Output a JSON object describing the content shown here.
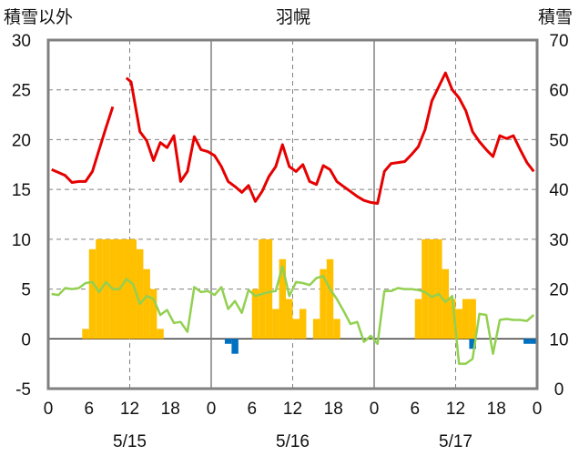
{
  "chart_data": {
    "type": "line",
    "title": "羽幌",
    "left_axis_title": "積雪以外",
    "right_axis_title": "積雪",
    "y_left": {
      "min": -5,
      "max": 30,
      "ticks": [
        "30",
        "25",
        "20",
        "15",
        "10",
        "5",
        "0",
        "-5"
      ]
    },
    "y_right": {
      "min": 0,
      "max": 70,
      "ticks": [
        "70",
        "60",
        "50",
        "40",
        "30",
        "20",
        "10",
        "0"
      ]
    },
    "x_hour_ticks": [
      "0",
      "6",
      "12",
      "18",
      "0",
      "6",
      "12",
      "18",
      "0",
      "6",
      "12",
      "18",
      "0"
    ],
    "day_labels": [
      "5/15",
      "5/16",
      "5/17"
    ],
    "day_hours": 24,
    "days": 3,
    "grid": true,
    "colors": {
      "red": "#e60000",
      "green": "#92d050",
      "orange": "#ffc000",
      "blue": "#0070c0",
      "frame": "#808080",
      "grid": "#808080"
    },
    "series": [
      {
        "key": "red",
        "axis": "left",
        "color": "#e60000",
        "points": [
          [
            0,
            17.0
          ],
          [
            1,
            16.7
          ],
          [
            2,
            16.4
          ],
          [
            3,
            15.7
          ],
          [
            4,
            15.8
          ],
          [
            5,
            15.8
          ],
          [
            6,
            16.8
          ],
          [
            7,
            19.0
          ],
          [
            8,
            21.2
          ],
          [
            9,
            23.3
          ],
          [
            11,
            26.2
          ],
          [
            11.7,
            25.8
          ],
          [
            13,
            20.8
          ],
          [
            14,
            19.9
          ],
          [
            15,
            17.9
          ],
          [
            16,
            19.7
          ],
          [
            17,
            19.2
          ],
          [
            18,
            20.4
          ],
          [
            19,
            15.8
          ],
          [
            20,
            16.8
          ],
          [
            21,
            20.3
          ],
          [
            22,
            19.0
          ],
          [
            23,
            18.8
          ],
          [
            24,
            18.4
          ],
          [
            25,
            17.3
          ],
          [
            26,
            15.8
          ],
          [
            27,
            15.3
          ],
          [
            28,
            14.7
          ],
          [
            29,
            15.4
          ],
          [
            30,
            13.8
          ],
          [
            31,
            14.8
          ],
          [
            32,
            16.3
          ],
          [
            33,
            17.3
          ],
          [
            34,
            19.5
          ],
          [
            35,
            17.3
          ],
          [
            36,
            16.8
          ],
          [
            37,
            17.5
          ],
          [
            38,
            15.8
          ],
          [
            39,
            15.5
          ],
          [
            40,
            17.4
          ],
          [
            41,
            17.0
          ],
          [
            42,
            15.8
          ],
          [
            43,
            15.3
          ],
          [
            44,
            14.8
          ],
          [
            45,
            14.3
          ],
          [
            46,
            13.9
          ],
          [
            47,
            13.7
          ],
          [
            48,
            13.6
          ],
          [
            49,
            16.8
          ],
          [
            50,
            17.6
          ],
          [
            51,
            17.7
          ],
          [
            52,
            17.8
          ],
          [
            53,
            18.5
          ],
          [
            54,
            19.3
          ],
          [
            55,
            21.0
          ],
          [
            56,
            23.9
          ],
          [
            57,
            25.3
          ],
          [
            58,
            26.7
          ],
          [
            59,
            25.0
          ],
          [
            60,
            24.2
          ],
          [
            61,
            22.9
          ],
          [
            62,
            20.8
          ],
          [
            63,
            19.8
          ],
          [
            64,
            19.0
          ],
          [
            65,
            18.3
          ],
          [
            66,
            20.4
          ],
          [
            67,
            20.1
          ],
          [
            68,
            20.4
          ],
          [
            69,
            19.0
          ],
          [
            70,
            17.7
          ],
          [
            71,
            16.8
          ]
        ]
      },
      {
        "key": "green",
        "axis": "left",
        "color": "#92d050",
        "points": [
          [
            0,
            4.5
          ],
          [
            1,
            4.4
          ],
          [
            2,
            5.1
          ],
          [
            3,
            5.0
          ],
          [
            4,
            5.1
          ],
          [
            5,
            5.6
          ],
          [
            6,
            5.7
          ],
          [
            7,
            4.7
          ],
          [
            8,
            5.7
          ],
          [
            9,
            5.0
          ],
          [
            10,
            5.0
          ],
          [
            11,
            6.0
          ],
          [
            12,
            5.5
          ],
          [
            13,
            3.5
          ],
          [
            14,
            4.3
          ],
          [
            15,
            4.0
          ],
          [
            16,
            2.4
          ],
          [
            17,
            2.9
          ],
          [
            18,
            1.6
          ],
          [
            19,
            1.7
          ],
          [
            20,
            0.7
          ],
          [
            21,
            5.2
          ],
          [
            22,
            4.7
          ],
          [
            23,
            4.8
          ],
          [
            24,
            4.4
          ],
          [
            25,
            5.2
          ],
          [
            26,
            3.0
          ],
          [
            27,
            3.8
          ],
          [
            28,
            2.6
          ],
          [
            29,
            4.9
          ],
          [
            30,
            4.3
          ],
          [
            31,
            4.5
          ],
          [
            32,
            4.7
          ],
          [
            33,
            4.8
          ],
          [
            34,
            7.3
          ],
          [
            35,
            4.3
          ],
          [
            36,
            5.7
          ],
          [
            37,
            5.6
          ],
          [
            38,
            5.4
          ],
          [
            39,
            6.1
          ],
          [
            40,
            6.3
          ],
          [
            41,
            5.0
          ],
          [
            42,
            4.0
          ],
          [
            43,
            2.8
          ],
          [
            44,
            1.5
          ],
          [
            45,
            1.7
          ],
          [
            46,
            -0.3
          ],
          [
            47,
            0.3
          ],
          [
            48,
            -0.5
          ],
          [
            49,
            4.8
          ],
          [
            50,
            4.8
          ],
          [
            51,
            5.1
          ],
          [
            52,
            5.0
          ],
          [
            53,
            5.0
          ],
          [
            54,
            4.9
          ],
          [
            55,
            4.7
          ],
          [
            56,
            4.2
          ],
          [
            57,
            4.5
          ],
          [
            58,
            3.7
          ],
          [
            59,
            4.3
          ],
          [
            60,
            -2.5
          ],
          [
            61,
            -2.5
          ],
          [
            62,
            -2.0
          ],
          [
            63,
            2.5
          ],
          [
            64,
            2.4
          ],
          [
            65,
            -1.5
          ],
          [
            66,
            1.9
          ],
          [
            67,
            2.0
          ],
          [
            68,
            1.9
          ],
          [
            69,
            1.9
          ],
          [
            70,
            1.8
          ],
          [
            71,
            2.4
          ]
        ]
      }
    ],
    "bars": [
      {
        "color": "#ffc000",
        "axis": "left",
        "values": [
          [
            5,
            1
          ],
          [
            6,
            9
          ],
          [
            7,
            10
          ],
          [
            8,
            10
          ],
          [
            9,
            10
          ],
          [
            10,
            10
          ],
          [
            11,
            10
          ],
          [
            12,
            10
          ],
          [
            13,
            9
          ],
          [
            14,
            7
          ],
          [
            15,
            5
          ],
          [
            16,
            1
          ],
          [
            30,
            5
          ],
          [
            31,
            10
          ],
          [
            32,
            10
          ],
          [
            33,
            3
          ],
          [
            34,
            8
          ],
          [
            35,
            4
          ],
          [
            36,
            2
          ],
          [
            37,
            3
          ],
          [
            39,
            2
          ],
          [
            40,
            7
          ],
          [
            41,
            8
          ],
          [
            42,
            2
          ],
          [
            54,
            4
          ],
          [
            55,
            10
          ],
          [
            56,
            10
          ],
          [
            57,
            10
          ],
          [
            58,
            7
          ],
          [
            59,
            4
          ],
          [
            60,
            3
          ],
          [
            61,
            4
          ],
          [
            62,
            4
          ]
        ]
      },
      {
        "color": "#0070c0",
        "axis": "left",
        "values": [
          [
            26,
            -0.5
          ],
          [
            27,
            -1.5
          ],
          [
            62,
            -1.0
          ],
          [
            70,
            -0.5
          ],
          [
            71,
            -0.5
          ]
        ]
      }
    ]
  }
}
